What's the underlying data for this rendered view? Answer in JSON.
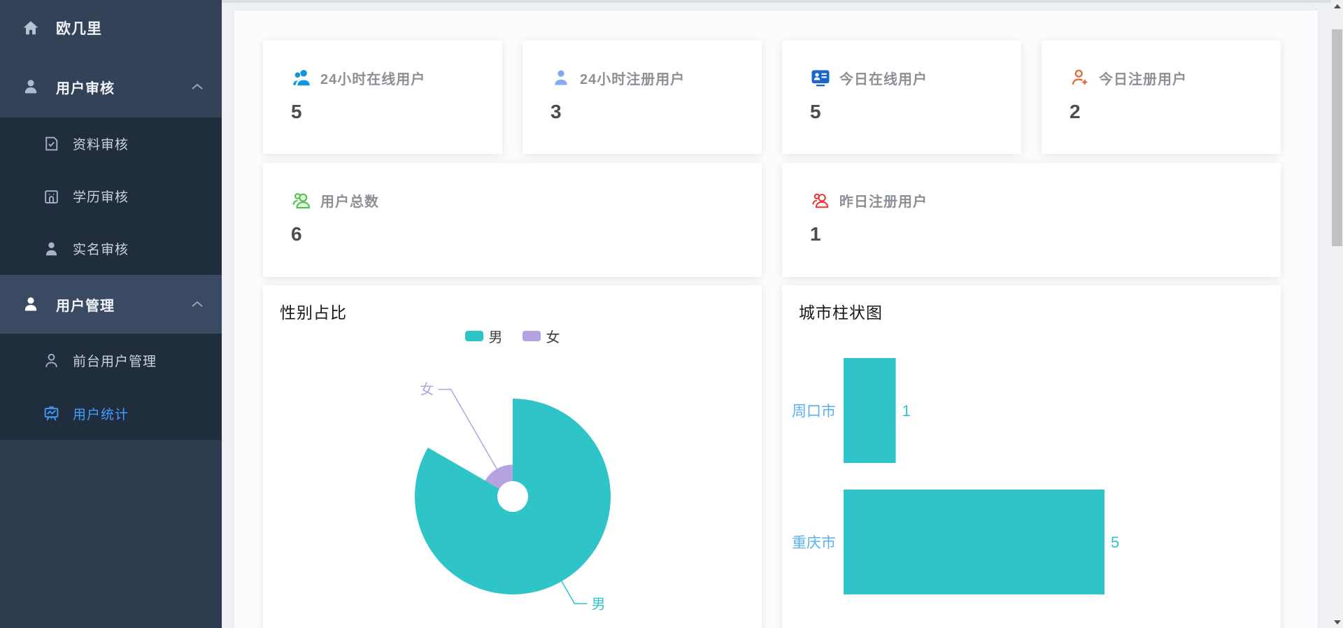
{
  "sidebar": {
    "logo": {
      "label": "欧几里"
    },
    "section1": {
      "label": "用户审核"
    },
    "section1_items": [
      {
        "label": "资料审核"
      },
      {
        "label": "学历审核"
      },
      {
        "label": "实名审核"
      }
    ],
    "section2": {
      "label": "用户管理"
    },
    "section2_items": [
      {
        "label": "前台用户管理"
      },
      {
        "label": "用户统计",
        "active": true,
        "active_color": "#409eff"
      }
    ]
  },
  "stats": [
    {
      "label": "24小时在线用户",
      "value": "5",
      "icon": "users-filled-icon",
      "icon_color": "#1296db"
    },
    {
      "label": "24小时注册用户",
      "value": "3",
      "icon": "user-filled-icon",
      "icon_color": "#86a9f1"
    },
    {
      "label": "今日在线用户",
      "value": "5",
      "icon": "id-card-icon",
      "icon_color": "#1a66c9"
    },
    {
      "label": "今日注册用户",
      "value": "2",
      "icon": "user-add-icon",
      "icon_color": "#e56a37"
    },
    {
      "label": "用户总数",
      "value": "6",
      "icon": "team-outline-icon",
      "icon_color": "#52c24a"
    },
    {
      "label": "昨日注册用户",
      "value": "1",
      "icon": "team-outline-icon",
      "icon_color": "#f03030"
    }
  ],
  "chart_data": [
    {
      "type": "pie",
      "title": "性别占比",
      "rose_type": true,
      "labels": [
        "男",
        "女"
      ],
      "values": [
        5,
        1
      ],
      "colors": [
        "#2fc5c8",
        "#b5a2e0"
      ],
      "inner_radius_px": 22,
      "outer_radius_px": 140,
      "legend_position": "top-center",
      "start_angle": "12-oclock, clockwise"
    },
    {
      "type": "bar",
      "title": "城市柱状图",
      "orientation": "horizontal",
      "categories": [
        "周口市",
        "重庆市"
      ],
      "values": [
        1,
        5
      ],
      "xlim": [
        0,
        5
      ],
      "bar_color": "#2fc5c8",
      "category_label_color": "#5ab1ef",
      "value_label_color": "#2fc5c8",
      "grid": false
    }
  ]
}
